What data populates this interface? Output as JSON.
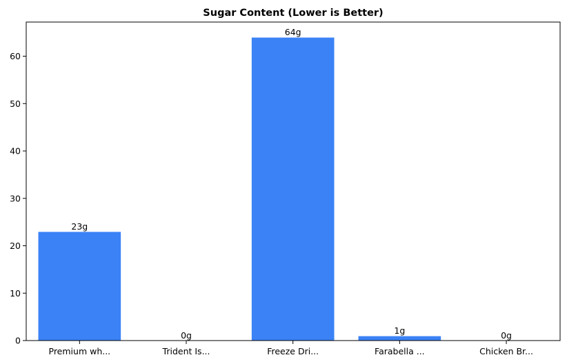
{
  "chart_data": {
    "type": "bar",
    "title": "Sugar Content (Lower is Better)",
    "xlabel": "",
    "ylabel": "",
    "categories": [
      "Premium wh...",
      "Trident Is...",
      "Freeze Dri...",
      "Farabella ...",
      "Chicken Br..."
    ],
    "values": [
      23,
      0,
      64,
      1,
      0
    ],
    "value_labels": [
      "23g",
      "0g",
      "64g",
      "1g",
      "0g"
    ],
    "ylim": [
      0,
      67.2
    ],
    "yticks": [
      0,
      10,
      20,
      30,
      40,
      50,
      60
    ],
    "grid": false,
    "bar_color": "#3b82f6",
    "bar_edge_color": "#ffffff"
  }
}
